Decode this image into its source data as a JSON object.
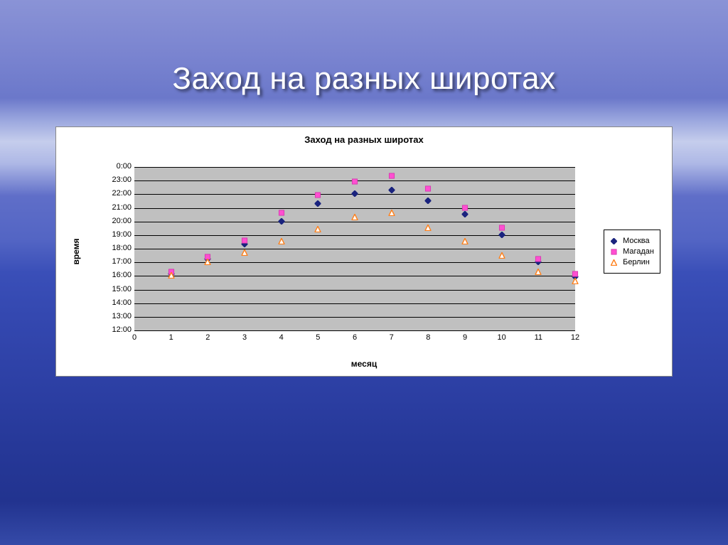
{
  "slide": {
    "title": "Заход на разных широтах",
    "title_color": "#ffffff",
    "title_fontsize": 44,
    "title_shadow": "3px 3px 4px rgba(0,0,0,0.55)"
  },
  "chart": {
    "type": "scatter",
    "title": "Заход на разных широтах",
    "title_fontsize": 13,
    "xlabel": "месяц",
    "ylabel": "время",
    "label_fontsize": 12,
    "tick_fontsize": 11,
    "background_color": "#ffffff",
    "plot_background_color": "#c0c0c0",
    "grid_color": "#000000",
    "panel_border_color": "#888888",
    "xlim": [
      0,
      12
    ],
    "xtick_step": 1,
    "xticks": [
      0,
      1,
      2,
      3,
      4,
      5,
      6,
      7,
      8,
      9,
      10,
      11,
      12
    ],
    "ylim_hours": [
      12,
      24
    ],
    "ytick_step_hours": 1,
    "yticks": [
      "12:00",
      "13:00",
      "14:00",
      "15:00",
      "16:00",
      "17:00",
      "18:00",
      "19:00",
      "20:00",
      "21:00",
      "22:00",
      "23:00",
      "0:00"
    ],
    "legend": {
      "position": "right",
      "border_color": "#000000",
      "items": [
        {
          "label": "Москва",
          "marker": "diamond",
          "fill": "#1a237e",
          "stroke": "#1a237e"
        },
        {
          "label": "Магадан",
          "marker": "square",
          "fill": "#ff4fd1",
          "stroke": "#d63ab0"
        },
        {
          "label": "Берлин",
          "marker": "triangle",
          "fill": "#ffffff",
          "stroke": "#ff7f1a"
        }
      ]
    },
    "marker_size": 9,
    "series": [
      {
        "name": "Москва",
        "marker": "diamond",
        "fill": "#1a237e",
        "stroke": "#1a237e",
        "points": [
          {
            "x": 1,
            "y": 16.1
          },
          {
            "x": 2,
            "y": 17.2
          },
          {
            "x": 3,
            "y": 18.3
          },
          {
            "x": 4,
            "y": 20.0
          },
          {
            "x": 5,
            "y": 21.3
          },
          {
            "x": 6,
            "y": 22.0
          },
          {
            "x": 7,
            "y": 22.3
          },
          {
            "x": 8,
            "y": 21.5
          },
          {
            "x": 9,
            "y": 20.5
          },
          {
            "x": 10,
            "y": 19.0
          },
          {
            "x": 11,
            "y": 17.0
          },
          {
            "x": 12,
            "y": 15.9
          }
        ]
      },
      {
        "name": "Магадан",
        "marker": "square",
        "fill": "#ff4fd1",
        "stroke": "#d63ab0",
        "points": [
          {
            "x": 1,
            "y": 16.3
          },
          {
            "x": 2,
            "y": 17.4
          },
          {
            "x": 3,
            "y": 18.6
          },
          {
            "x": 4,
            "y": 20.6
          },
          {
            "x": 5,
            "y": 21.9
          },
          {
            "x": 6,
            "y": 22.9
          },
          {
            "x": 7,
            "y": 23.3
          },
          {
            "x": 8,
            "y": 22.4
          },
          {
            "x": 9,
            "y": 21.0
          },
          {
            "x": 10,
            "y": 19.5
          },
          {
            "x": 11,
            "y": 17.2
          },
          {
            "x": 12,
            "y": 16.1
          }
        ]
      },
      {
        "name": "Берлин",
        "marker": "triangle",
        "fill": "#ffffff",
        "stroke": "#ff7f1a",
        "points": [
          {
            "x": 1,
            "y": 16.0
          },
          {
            "x": 2,
            "y": 17.0
          },
          {
            "x": 3,
            "y": 17.7
          },
          {
            "x": 4,
            "y": 18.5
          },
          {
            "x": 5,
            "y": 19.4
          },
          {
            "x": 6,
            "y": 20.3
          },
          {
            "x": 7,
            "y": 20.6
          },
          {
            "x": 8,
            "y": 19.5
          },
          {
            "x": 9,
            "y": 18.5
          },
          {
            "x": 10,
            "y": 17.5
          },
          {
            "x": 11,
            "y": 16.3
          },
          {
            "x": 12,
            "y": 15.6
          }
        ]
      }
    ]
  }
}
